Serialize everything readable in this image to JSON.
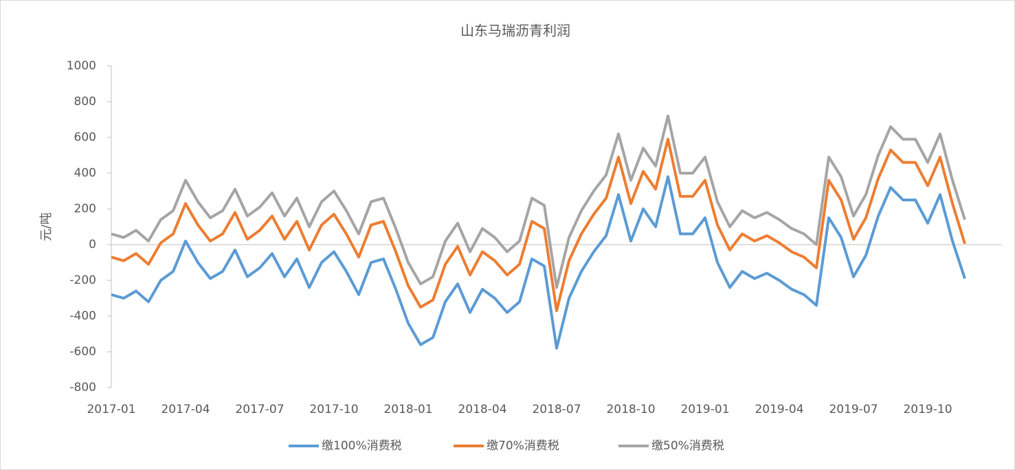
{
  "chart_data": {
    "type": "line",
    "title": "山东马瑞沥青利润",
    "y_label": "元/吨",
    "categories": [
      "2017-01",
      null,
      null,
      null,
      null,
      null,
      "2017-04",
      null,
      null,
      null,
      null,
      null,
      "2017-07",
      null,
      null,
      null,
      null,
      null,
      "2017-10",
      null,
      null,
      null,
      null,
      null,
      "2018-01",
      null,
      null,
      null,
      null,
      null,
      "2018-04",
      null,
      null,
      null,
      null,
      null,
      "2018-07",
      null,
      null,
      null,
      null,
      null,
      "2018-10",
      null,
      null,
      null,
      null,
      null,
      "2019-01",
      null,
      null,
      null,
      null,
      null,
      "2019-04",
      null,
      null,
      null,
      null,
      null,
      "2019-07",
      null,
      null,
      null,
      null,
      null,
      "2019-10",
      null,
      null,
      null,
      null,
      null
    ],
    "series": [
      {
        "name": "缴100%消费税",
        "color": "#5b9bd5",
        "values": [
          -280,
          -300,
          -260,
          -320,
          -200,
          -150,
          20,
          -100,
          -190,
          -150,
          -30,
          -180,
          -130,
          -50,
          -180,
          -80,
          -240,
          -100,
          -40,
          -150,
          -280,
          -100,
          -80,
          -250,
          -440,
          -560,
          -520,
          -320,
          -220,
          -380,
          -250,
          -300,
          -380,
          -320,
          -80,
          -120,
          -580,
          -300,
          -150,
          -40,
          50,
          280,
          20,
          200,
          100,
          380,
          60,
          60,
          150,
          -100,
          -240,
          -150,
          -190,
          -160,
          -200,
          -250,
          -280,
          -340,
          150,
          40,
          -180,
          -60,
          160,
          320,
          250,
          250,
          120,
          280,
          20,
          -190,
          null,
          null
        ]
      },
      {
        "name": "缴70%消费税",
        "color": "#ed7d31",
        "values": [
          -70,
          -90,
          -50,
          -110,
          10,
          60,
          230,
          110,
          20,
          60,
          180,
          30,
          80,
          160,
          30,
          130,
          -30,
          110,
          170,
          60,
          -70,
          110,
          130,
          -40,
          -230,
          -350,
          -310,
          -110,
          -10,
          -170,
          -40,
          -90,
          -170,
          -110,
          130,
          90,
          -370,
          -90,
          60,
          170,
          260,
          490,
          230,
          410,
          310,
          590,
          270,
          270,
          360,
          110,
          -30,
          60,
          20,
          50,
          10,
          -40,
          -70,
          -130,
          360,
          250,
          30,
          150,
          370,
          530,
          460,
          460,
          330,
          490,
          230,
          5,
          null,
          null
        ]
      },
      {
        "name": "缴50%消费税",
        "color": "#a5a5a5",
        "values": [
          60,
          40,
          80,
          20,
          140,
          190,
          360,
          240,
          150,
          190,
          310,
          160,
          210,
          290,
          160,
          260,
          100,
          240,
          300,
          190,
          60,
          240,
          260,
          90,
          -100,
          -220,
          -180,
          20,
          120,
          -40,
          90,
          40,
          -40,
          20,
          260,
          220,
          -240,
          40,
          190,
          300,
          390,
          620,
          360,
          540,
          440,
          720,
          400,
          400,
          490,
          240,
          100,
          190,
          150,
          180,
          140,
          90,
          60,
          0,
          490,
          380,
          160,
          280,
          500,
          660,
          590,
          590,
          460,
          620,
          360,
          140,
          null,
          null
        ]
      }
    ],
    "ylim": [
      -800,
      1000
    ],
    "yticks": [
      -800,
      -600,
      -400,
      -200,
      0,
      200,
      400,
      600,
      800,
      1000
    ],
    "legend": "bottom"
  }
}
